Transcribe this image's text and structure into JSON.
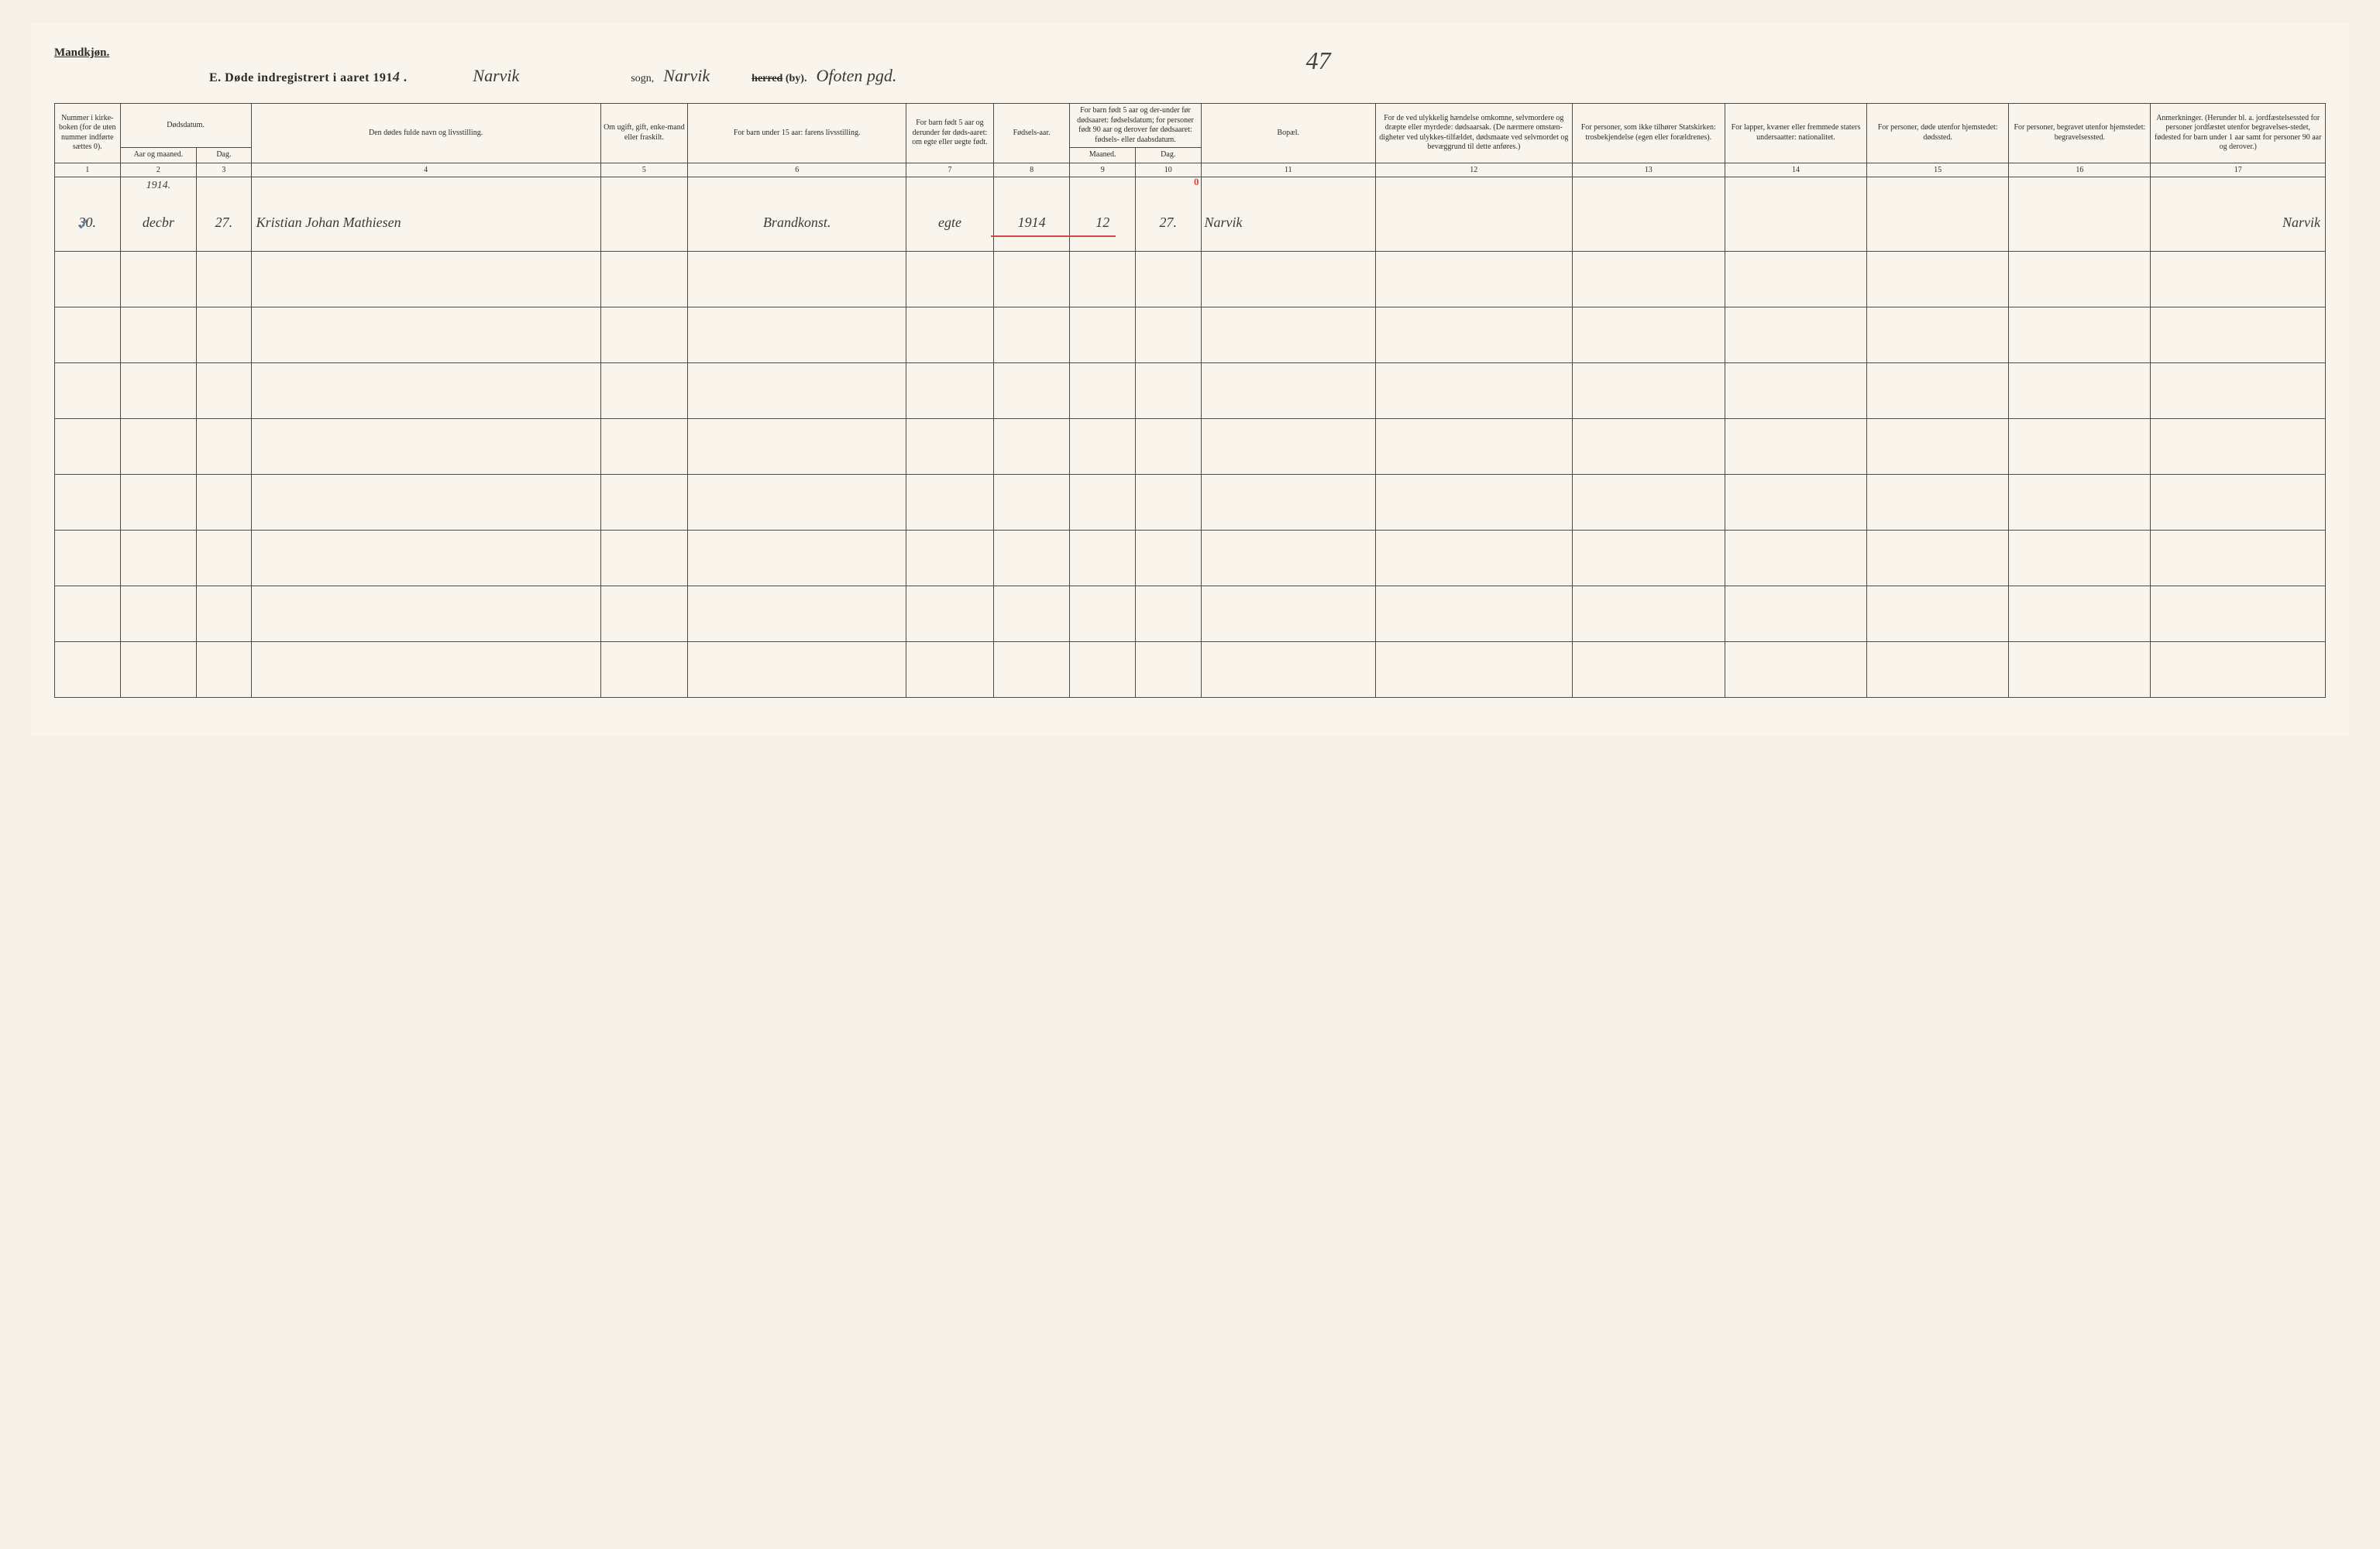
{
  "gender_label": "Mandkjøn.",
  "title_prefix": "E.   Døde indregistrert i aaret 191",
  "title_year_suffix": "4 .",
  "sogn_value": "Narvik",
  "sogn_label": "sogn,",
  "herred_value": "Narvik",
  "herred_label_struck": "herred",
  "herred_label_by": " (by).",
  "ofoten": "Ofoten pgd.",
  "page_number": "47",
  "columns": {
    "1": "Nummer i kirke-boken (for de uten nummer indførte sættes 0).",
    "2a": "Dødsdatum.",
    "2": "Aar og maaned.",
    "3": "Dag.",
    "4": "Den dødes fulde navn og livsstilling.",
    "5": "Om ugift, gift, enke-mand eller fraskilt.",
    "6": "For barn under 15 aar: farens livsstilling.",
    "7": "For barn født 5 aar og derunder før døds-aaret: om egte eller uegte født.",
    "8": "Fødsels-aar.",
    "9a": "For barn født 5 aar og der-under før dødsaaret: fødselsdatum; for personer født 90 aar og derover før dødsaaret: fødsels- eller daabsdatum.",
    "9": "Maaned.",
    "10": "Dag.",
    "11": "Bopæl.",
    "12": "For de ved ulykkelig hændelse omkomne, selvmordere og dræpte eller myrdede: dødsaarsak. (De nærmere omstæn-digheter ved ulykkes-tilfældet, dødsmaate ved selvmordet og bevæggrund til dette anføres.)",
    "13": "For personer, som ikke tilhører Statskirken: trosbekjendelse (egen eller forældrenes).",
    "14": "For lapper, kvæner eller fremmede staters undersaatter: nationalitet.",
    "15": "For personer, døde utenfor hjemstedet: dødssted.",
    "16": "For personer, begravet utenfor hjemstedet: begravelsessted.",
    "17": "Anmerkninger. (Herunder bl. a. jordfæstelsessted for personer jordfæstet utenfor begravelses-stedet, fødested for barn under 1 aar samt for personer 90 aar og derover.)"
  },
  "colnums": [
    "1",
    "2",
    "3",
    "4",
    "5",
    "6",
    "7",
    "8",
    "9",
    "10",
    "11",
    "12",
    "13",
    "14",
    "15",
    "16",
    "17"
  ],
  "pre_year": "1914.",
  "row": {
    "num": "30.",
    "aar_maaned": "decbr",
    "dag": "27.",
    "navn": "Kristian Johan Mathiesen",
    "stilling": "Brandkonst.",
    "egte": "egte",
    "fodselsaar": "1914",
    "f_maaned": "12",
    "f_dag": "27.",
    "bopael": "Narvik",
    "anm": "Narvik",
    "red_zero": "0"
  },
  "checkmark": "✓",
  "empty_rows": 8
}
